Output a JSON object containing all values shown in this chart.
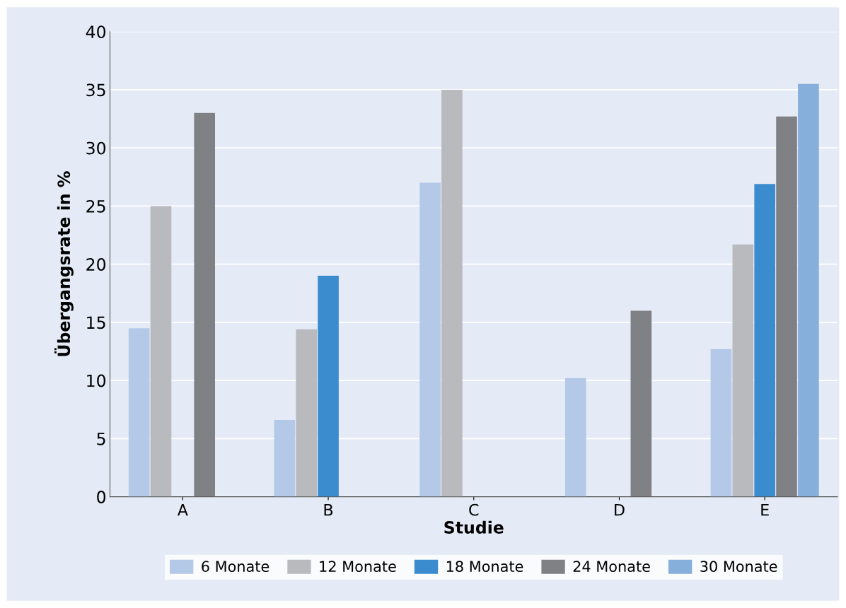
{
  "chart_data": {
    "type": "bar",
    "xlabel": "Studie",
    "ylabel": "Übergangsrate in %",
    "categories": [
      "A",
      "B",
      "C",
      "D",
      "E"
    ],
    "series": [
      {
        "name": "6 Monate",
        "color": "#b4c8e8",
        "values": [
          14.5,
          6.6,
          27,
          10.2,
          12.7
        ]
      },
      {
        "name": "12 Monate",
        "color": "#b9babe",
        "values": [
          25,
          14.4,
          35,
          null,
          21.7
        ]
      },
      {
        "name": "18 Monate",
        "color": "#3a8ccf",
        "values": [
          null,
          19,
          null,
          null,
          26.9
        ]
      },
      {
        "name": "24 Monate",
        "color": "#808185",
        "values": [
          33,
          null,
          null,
          16,
          32.7
        ]
      },
      {
        "name": "30 Monate",
        "color": "#86afdc",
        "values": [
          null,
          null,
          null,
          null,
          35.5
        ]
      }
    ],
    "ylim": [
      0,
      40
    ],
    "yticks": [
      0,
      5,
      10,
      15,
      20,
      25,
      30,
      35,
      40
    ],
    "grid": "y",
    "legend": "bottom"
  }
}
